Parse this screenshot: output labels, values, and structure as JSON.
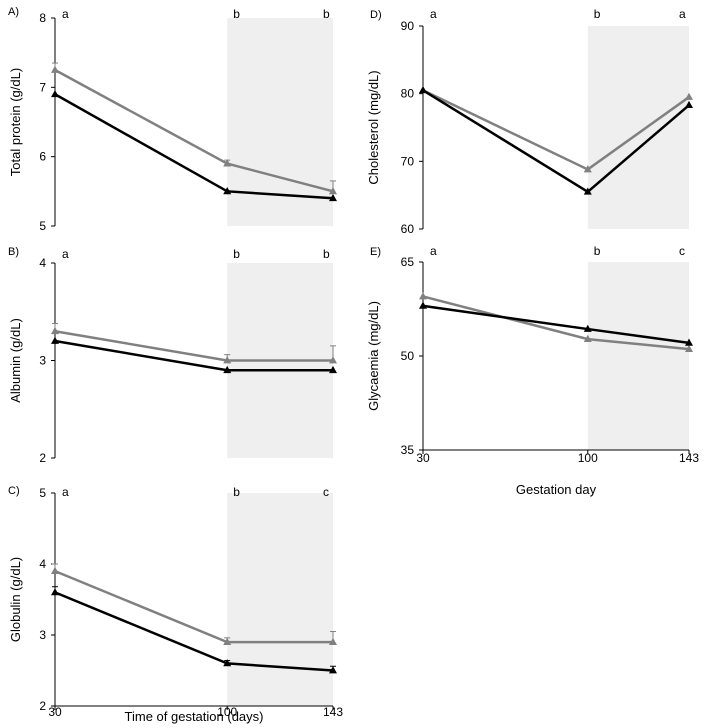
{
  "colors": {
    "shade": "#efefef",
    "series_black": "#000000",
    "series_gray": "#808080",
    "axis": "#000000"
  },
  "chart_data": [
    {
      "id": "A",
      "panel_label": "A)",
      "type": "line",
      "ylabel": "Total protein (g/dL)",
      "ylim": [
        5,
        8
      ],
      "yticks": [
        "5",
        "6",
        "7",
        "8"
      ],
      "x": [
        30,
        100,
        143
      ],
      "xticks": [],
      "xlabel": "",
      "shaded_x_range": [
        100,
        143
      ],
      "letters": [
        "a",
        "b",
        "b"
      ],
      "series": [
        {
          "name": "gray",
          "values": [
            7.25,
            5.9,
            5.5
          ],
          "errors": [
            0.1,
            0.05,
            0.15
          ]
        },
        {
          "name": "black",
          "values": [
            6.9,
            5.5,
            5.4
          ],
          "errors": [
            0,
            0,
            0
          ]
        }
      ]
    },
    {
      "id": "B",
      "panel_label": "B)",
      "type": "line",
      "ylabel": "Albumin (g/dL)",
      "ylim": [
        2,
        4
      ],
      "yticks": [
        "2",
        "3",
        "4"
      ],
      "x": [
        30,
        100,
        143
      ],
      "xticks": [],
      "xlabel": "",
      "shaded_x_range": [
        100,
        143
      ],
      "letters": [
        "a",
        "b",
        "b"
      ],
      "series": [
        {
          "name": "gray",
          "values": [
            3.3,
            3.0,
            3.0
          ],
          "errors": [
            0.08,
            0.06,
            0.15
          ]
        },
        {
          "name": "black",
          "values": [
            3.2,
            2.9,
            2.9
          ],
          "errors": [
            0,
            0,
            0
          ]
        }
      ]
    },
    {
      "id": "C",
      "panel_label": "C)",
      "type": "line",
      "ylabel": "Globulin (g/dL)",
      "ylim": [
        2,
        5
      ],
      "yticks": [
        "2",
        "3",
        "4",
        "5"
      ],
      "x": [
        30,
        100,
        143
      ],
      "xticks": [
        "30",
        "100",
        "143"
      ],
      "xlabel": "Time of gestation (days)",
      "shaded_x_range": [
        100,
        143
      ],
      "letters": [
        "a",
        "b",
        "c"
      ],
      "series": [
        {
          "name": "gray",
          "values": [
            3.9,
            2.9,
            2.9
          ],
          "errors": [
            0.1,
            0.06,
            0.15
          ]
        },
        {
          "name": "black",
          "values": [
            3.6,
            2.6,
            2.5
          ],
          "errors": [
            0.08,
            0.04,
            0.06
          ]
        }
      ]
    },
    {
      "id": "D",
      "panel_label": "D)",
      "type": "line",
      "ylabel": "Cholesterol (mg/dL)",
      "ylim": [
        60,
        90
      ],
      "yticks": [
        "60",
        "70",
        "80",
        "90"
      ],
      "x": [
        30,
        100,
        143
      ],
      "xticks": [],
      "xlabel": "",
      "shaded_x_range": [
        100,
        143
      ],
      "letters": [
        "a",
        "b",
        "a"
      ],
      "series": [
        {
          "name": "gray",
          "values": [
            80.5,
            68.8,
            79.5
          ],
          "errors": [
            0,
            0,
            0
          ]
        },
        {
          "name": "black",
          "values": [
            80.5,
            65.5,
            78.3
          ],
          "errors": [
            0,
            0,
            0
          ]
        }
      ]
    },
    {
      "id": "E",
      "panel_label": "E)",
      "type": "line",
      "ylabel": "Glycaemia (mg/dL)",
      "ylim": [
        35,
        65
      ],
      "yticks": [
        "35",
        "50",
        "65"
      ],
      "x": [
        30,
        100,
        143
      ],
      "xticks": [
        "30",
        "100",
        "143"
      ],
      "xlabel": "Gestation day",
      "shaded_x_range": [
        100,
        143
      ],
      "letters": [
        "a",
        "b",
        "c"
      ],
      "series": [
        {
          "name": "gray",
          "values": [
            59.5,
            52.7,
            51.1
          ],
          "errors": [
            0,
            0,
            0
          ]
        },
        {
          "name": "black",
          "values": [
            58.0,
            54.3,
            52.1
          ],
          "errors": [
            0,
            0,
            0
          ]
        }
      ]
    }
  ]
}
